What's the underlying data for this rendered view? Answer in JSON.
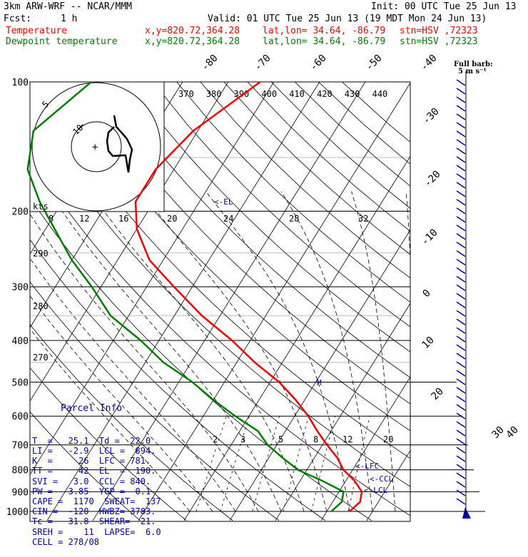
{
  "header": {
    "model": "3km ARW-WRF -- NCAR/MMM",
    "init": "Init: 00 UTC Tue 25 Jun 13",
    "fcst_label": "Fcst:",
    "fcst_value": "1 h",
    "valid": "Valid: 01 UTC Tue 25 Jun 13 (19 MDT Mon 24 Jun 13)",
    "temp_label": "Temperature",
    "dew_label": "Dewpoint temperature",
    "xy": "x,y=820.72,364.28",
    "latlon": "lat,lon= 34.64, -86.79",
    "stn": "stn=HSV ,72323"
  },
  "colors": {
    "temperature": "#ff0000",
    "dewpoint": "#008000",
    "annotations": "#0000aa",
    "grid": "#000000"
  },
  "fullbarb": {
    "line1": "Full barb:",
    "line2": "5 m s⁻¹"
  },
  "parcel_info": {
    "title": "Parcel Info",
    "rows": [
      "T  =   25.1  Td =  22.0",
      "LI =   -2.9  LCL =  894.",
      "K  =     26  LFC = 781.",
      "TT =     42  EL  =  190.",
      "SVI =   3.0  CCL = 840.",
      "PW =   3.85  YGP =  0.1",
      "CAPE =  1170  SWEAT=  137",
      "CIN =  -120  HWBZ= 3783.",
      "Tc =   31.8  SHEAR=  21.",
      "SREH =    11  LAPSE=  6.0",
      "CELL = 278/08"
    ]
  },
  "levels_text": {
    "el": "<-EL",
    "lfc": "<-LFC",
    "ccl": "<-CCL",
    "lcl": "<-LCL",
    "m": "M"
  },
  "hodograph": {
    "kts_label": "kts",
    "ring_labels": [
      "5",
      "10"
    ]
  },
  "chart_data": {
    "type": "line",
    "title": "",
    "ylabel": "",
    "y_scale": "log",
    "pressure_ticks": [
      "100",
      "200",
      "300",
      "400",
      "500",
      "600",
      "700",
      "800",
      "900",
      "1000"
    ],
    "temperature_ticks": [
      "-40",
      "-30",
      "-20",
      "-10",
      "0",
      "10",
      "20",
      "30",
      "40"
    ],
    "temperature_ticks_top": [
      "-80",
      "-70",
      "-60",
      "-50",
      "-40"
    ],
    "theta_labels": [
      "370",
      "380",
      "390",
      "400",
      "410",
      "420",
      "430",
      "440"
    ],
    "mixing_ratio_labels": [
      "2",
      "3",
      "5",
      "8",
      "12",
      "20"
    ],
    "theta_e_labels": [
      "290",
      "280",
      "270"
    ],
    "speed_labels": [
      "8",
      "12",
      "16",
      "20",
      "24",
      "28",
      "32"
    ],
    "series": [
      {
        "name": "Temperature",
        "points": [
          [
            100,
            -53
          ],
          [
            130,
            -61
          ],
          [
            160,
            -64
          ],
          [
            190,
            -64
          ],
          [
            220,
            -60
          ],
          [
            260,
            -53
          ],
          [
            300,
            -44
          ],
          [
            350,
            -34
          ],
          [
            400,
            -24
          ],
          [
            450,
            -16
          ],
          [
            500,
            -8
          ],
          [
            550,
            -2
          ],
          [
            600,
            3
          ],
          [
            650,
            7
          ],
          [
            700,
            11
          ],
          [
            750,
            15
          ],
          [
            800,
            18
          ],
          [
            850,
            22
          ],
          [
            900,
            25
          ],
          [
            950,
            26
          ],
          [
            1000,
            25
          ]
        ]
      },
      {
        "name": "Dewpoint temperature",
        "points": [
          [
            100,
            -90
          ],
          [
            130,
            -96
          ],
          [
            160,
            -92
          ],
          [
            190,
            -85
          ],
          [
            220,
            -78
          ],
          [
            260,
            -70
          ],
          [
            300,
            -62
          ],
          [
            350,
            -54
          ],
          [
            400,
            -44
          ],
          [
            450,
            -36
          ],
          [
            500,
            -27
          ],
          [
            550,
            -20
          ],
          [
            600,
            -13
          ],
          [
            650,
            -6
          ],
          [
            700,
            -2
          ],
          [
            750,
            3
          ],
          [
            800,
            8
          ],
          [
            850,
            15
          ],
          [
            900,
            21
          ],
          [
            950,
            22
          ],
          [
            1000,
            21
          ]
        ]
      }
    ]
  }
}
